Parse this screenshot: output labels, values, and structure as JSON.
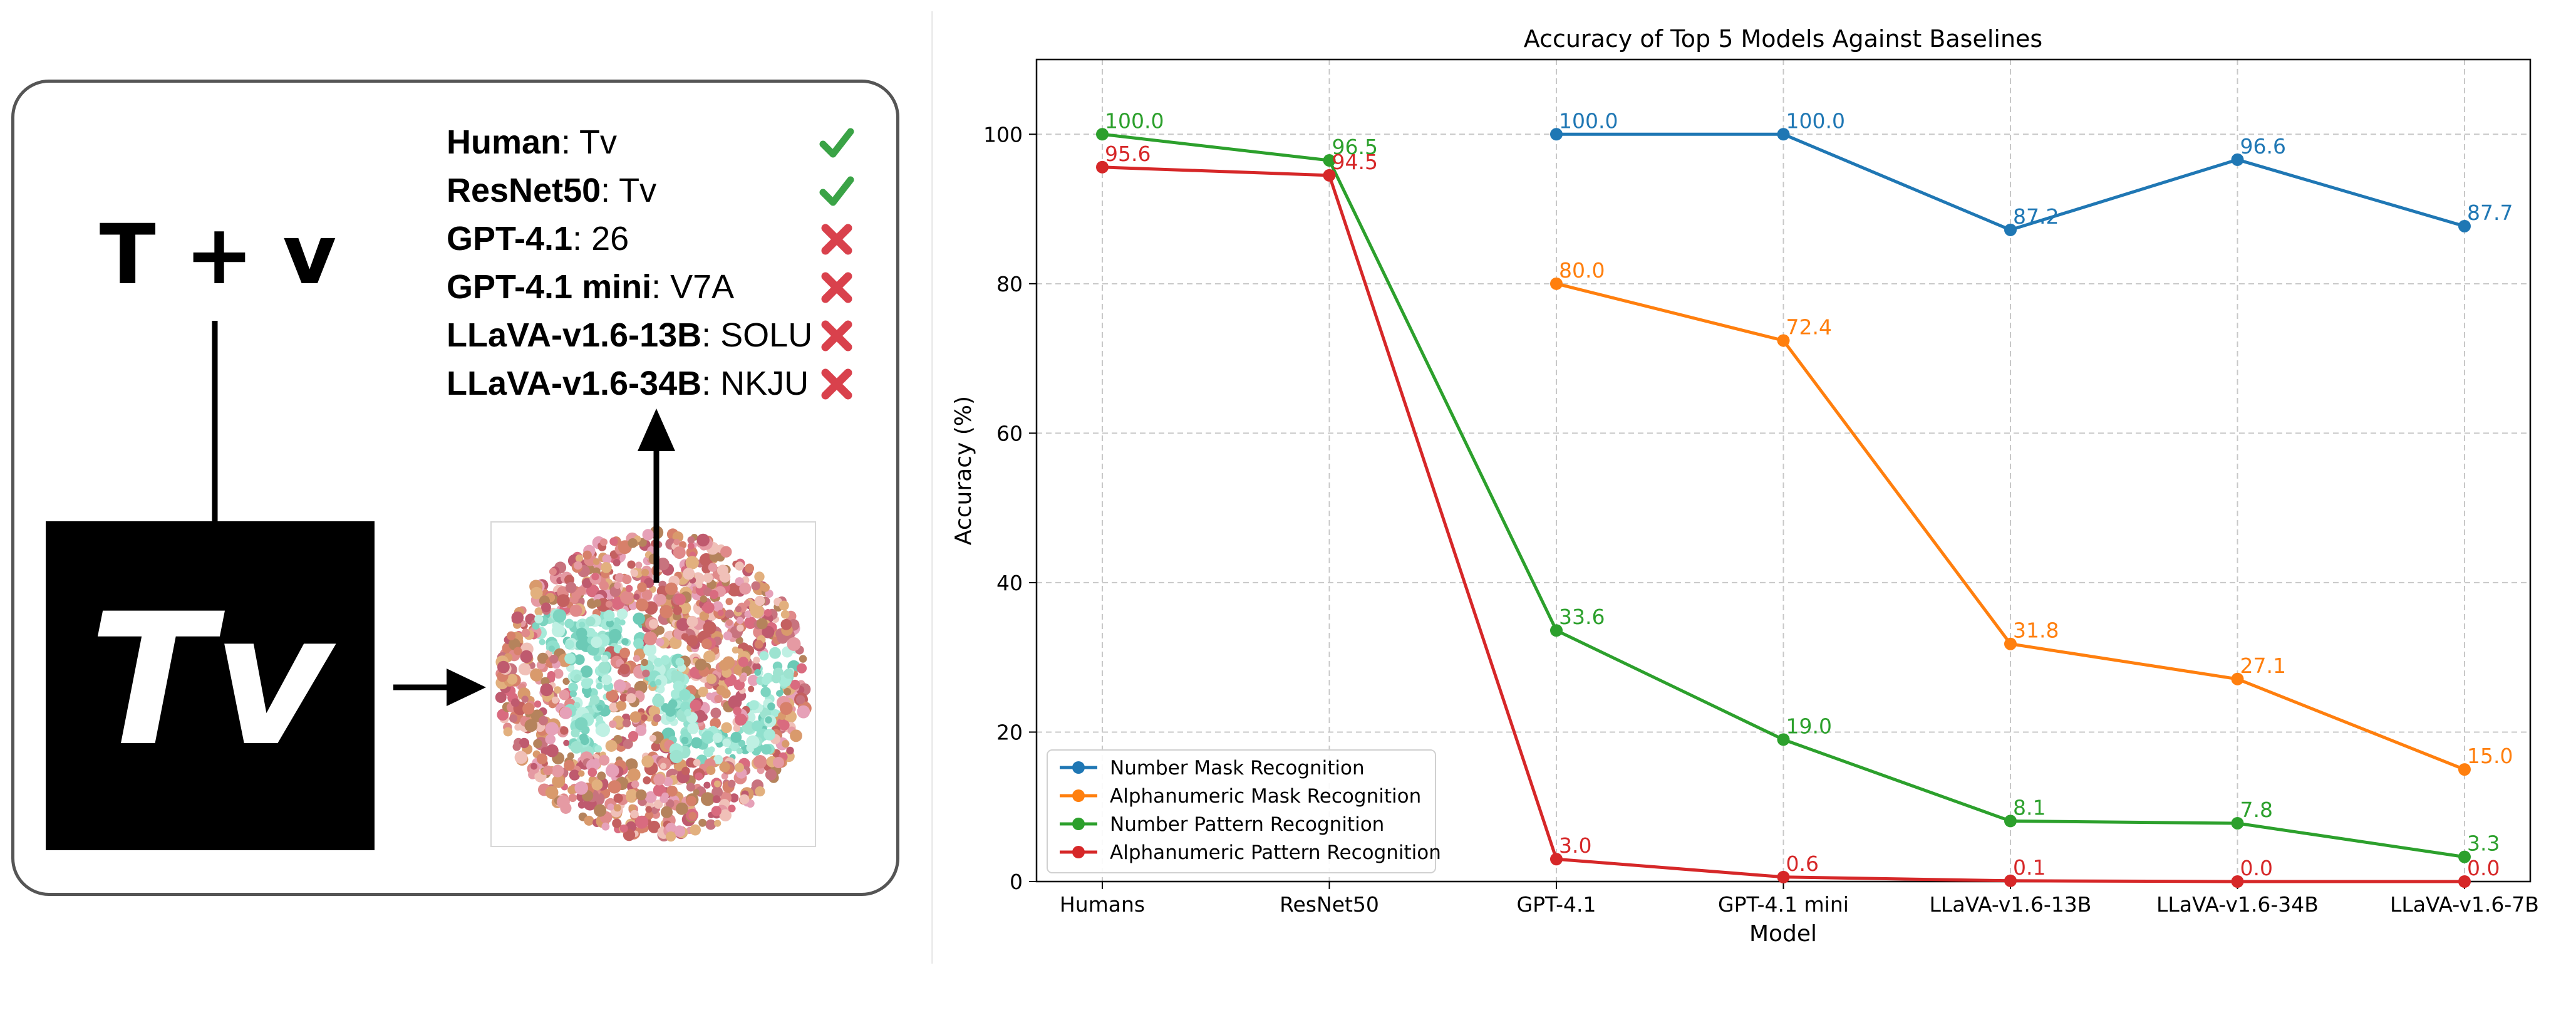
{
  "illustration": {
    "equation": "T + v",
    "rendered_text": "Tv",
    "predictions": [
      {
        "model": "Human",
        "separator": ": ",
        "answer": "Tv",
        "correct": true
      },
      {
        "model": "ResNet50",
        "separator": ": ",
        "answer": "Tv",
        "correct": true
      },
      {
        "model": "GPT-4.1",
        "separator": ": ",
        "answer": "26",
        "correct": false
      },
      {
        "model": "GPT-4.1 mini",
        "separator": ": ",
        "answer": "V7A",
        "correct": false
      },
      {
        "model": "LLaVA-v1.6-13B",
        "separator": ": ",
        "answer": "SOLU",
        "correct": false
      },
      {
        "model": "LLaVA-v1.6-34B",
        "separator": ": ",
        "answer": "NKJU",
        "correct": false
      }
    ],
    "icons": {
      "correct": "check-icon",
      "incorrect": "cross-icon"
    },
    "colors": {
      "check": "#3aa346",
      "cross": "#d9414c",
      "plate_figure": "#8fe0cd"
    }
  },
  "chart_data": {
    "type": "line",
    "title": "Accuracy of Top 5 Models Against Baselines",
    "xlabel": "Model",
    "ylabel": "Accuracy (%)",
    "categories": [
      "Humans",
      "ResNet50",
      "GPT-4.1",
      "GPT-4.1 mini",
      "LLaVA-v1.6-13B",
      "LLaVA-v1.6-34B",
      "LLaVA-v1.6-7B"
    ],
    "ylim": [
      0,
      110
    ],
    "yticks": [
      0,
      20,
      40,
      60,
      80,
      100
    ],
    "grid": true,
    "legend_position": "lower-left",
    "series": [
      {
        "name": "Number Mask Recognition",
        "color": "#1f77b4",
        "values": [
          null,
          null,
          100.0,
          100.0,
          87.2,
          96.6,
          87.7
        ],
        "labels": [
          "",
          "",
          "100.0",
          "100.0",
          "87.2",
          "96.6",
          "87.7"
        ]
      },
      {
        "name": "Alphanumeric Mask Recognition",
        "color": "#ff7f0e",
        "values": [
          null,
          null,
          80.0,
          72.4,
          31.8,
          27.1,
          15.0
        ],
        "labels": [
          "",
          "",
          "80.0",
          "72.4",
          "31.8",
          "27.1",
          "15.0"
        ]
      },
      {
        "name": "Number Pattern Recognition",
        "color": "#2ca02c",
        "values": [
          100.0,
          96.5,
          33.6,
          19.0,
          8.1,
          7.8,
          3.3
        ],
        "labels": [
          "100.0",
          "96.5",
          "33.6",
          "19.0",
          "8.1",
          "7.8",
          "3.3"
        ]
      },
      {
        "name": "Alphanumeric Pattern Recognition",
        "color": "#d62728",
        "values": [
          95.6,
          94.5,
          3.0,
          0.6,
          0.1,
          0.0,
          0.0
        ],
        "labels": [
          "95.6",
          "94.5",
          "3.0",
          "0.6",
          "0.1",
          "0.0",
          "0.0"
        ]
      }
    ]
  }
}
